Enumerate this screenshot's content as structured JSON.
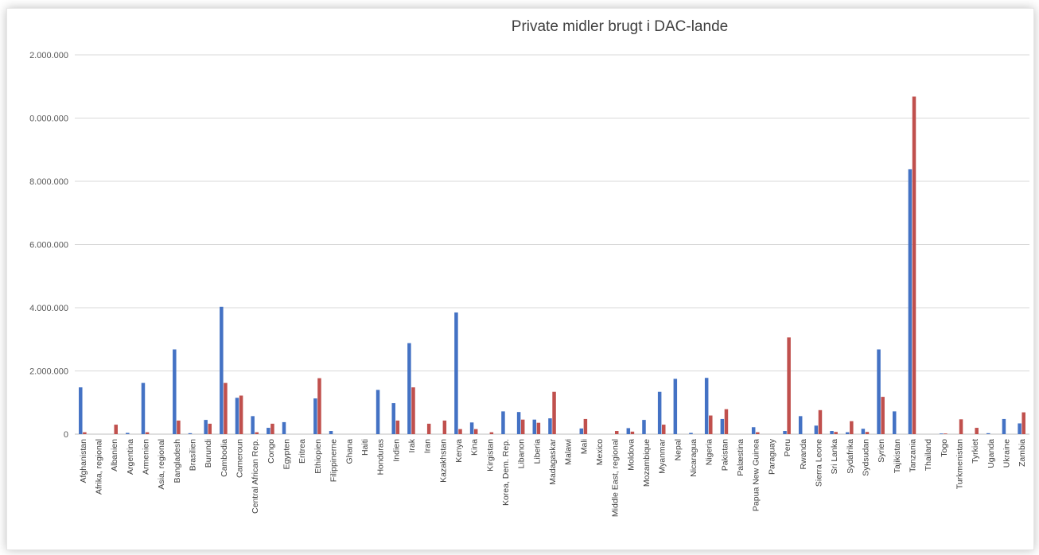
{
  "chart_data": {
    "type": "bar",
    "title": "Private midler brugt i DAC-lande",
    "xlabel": "",
    "ylabel": "",
    "ylim": [
      0,
      12000000
    ],
    "ytick_labels": [
      "0",
      "2.000.000",
      "4.000.000",
      "6.000.000",
      "8.000.000",
      "0.000.000",
      "2.000.000"
    ],
    "grid": true,
    "legend": "none",
    "categories": [
      "Afghanistan",
      "Afrika, regional",
      "Albanien",
      "Argentina",
      "Armenien",
      "Asia, regional",
      "Bangladesh",
      "Brasilien",
      "Burundi",
      "Cambodia",
      "Cameroun",
      "Central African Rep.",
      "Congo",
      "Egypten",
      "Eritrea",
      "Ethiopien",
      "Filippinerne",
      "Ghana",
      "Haiti",
      "Honduras",
      "Indien",
      "Irak",
      "Iran",
      "Kazakhstan",
      "Kenya",
      "Kina",
      "Kirgistan",
      "Korea, Dem. Rep.",
      "Libanon",
      "Liberia",
      "Madagaskar",
      "Malawi",
      "Mali",
      "Mexico",
      "Middle East, regional",
      "Moldova",
      "Mozambique",
      "Myanmar",
      "Nepal",
      "Nicaragua",
      "Nigeria",
      "Pakistan",
      "Palæstina",
      "Papua New Guinea",
      "Paraguay",
      "Peru",
      "Rwanda",
      "Sierra Leone",
      "Sri Lanka",
      "Sydafrika",
      "Sydsudan",
      "Syrien",
      "Tajikistan",
      "Tanzania",
      "Thailand",
      "Togo",
      "Turkmenistan",
      "Tyrkiet",
      "Uganda",
      "Ukraine",
      "Zambia"
    ],
    "series": [
      {
        "color": "#4472c4",
        "values": [
          1480000,
          0,
          0,
          40000,
          1620000,
          0,
          2680000,
          30000,
          450000,
          4030000,
          1150000,
          570000,
          200000,
          380000,
          0,
          1130000,
          100000,
          0,
          0,
          1400000,
          980000,
          2880000,
          0,
          0,
          3850000,
          370000,
          0,
          720000,
          700000,
          460000,
          500000,
          0,
          180000,
          0,
          0,
          190000,
          450000,
          1340000,
          1750000,
          40000,
          1780000,
          480000,
          0,
          220000,
          0,
          100000,
          570000,
          270000,
          100000,
          60000,
          170000,
          2680000,
          720000,
          8380000,
          0,
          20000,
          0,
          0,
          30000,
          480000,
          340000
        ]
      },
      {
        "color": "#c0504d",
        "values": [
          60000,
          0,
          300000,
          0,
          60000,
          0,
          430000,
          0,
          330000,
          1620000,
          1220000,
          60000,
          330000,
          0,
          0,
          1770000,
          0,
          0,
          0,
          0,
          430000,
          1480000,
          330000,
          430000,
          160000,
          160000,
          60000,
          0,
          460000,
          360000,
          1340000,
          0,
          480000,
          0,
          100000,
          80000,
          0,
          300000,
          0,
          0,
          590000,
          790000,
          0,
          60000,
          0,
          3060000,
          0,
          760000,
          70000,
          410000,
          70000,
          1180000,
          0,
          10680000,
          0,
          20000,
          470000,
          200000,
          0,
          0,
          690000
        ]
      }
    ]
  }
}
